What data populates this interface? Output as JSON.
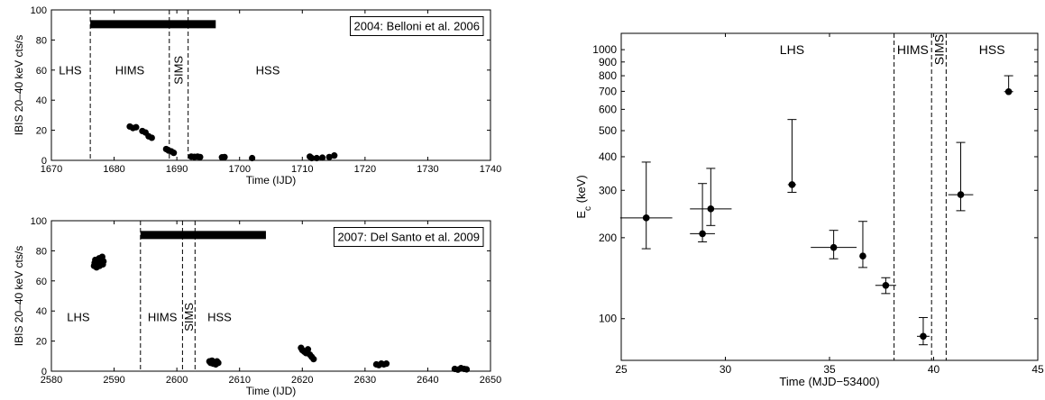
{
  "chart_data": [
    {
      "type": "scatter",
      "ylabel": "IBIS 20–40 keV cts/s",
      "xlabel": "Time (IJD)",
      "xlim": [
        1670,
        1740
      ],
      "ylim": [
        0,
        100
      ],
      "xticks": [
        1670,
        1680,
        1690,
        1700,
        1710,
        1720,
        1730,
        1740
      ],
      "yticks": [
        0,
        20,
        40,
        60,
        80,
        100
      ],
      "legend_box": "2004: Belloni et al. 2006",
      "bar": {
        "x_start": 1676.2,
        "x_end": 1696.2,
        "y": 90.5
      },
      "vlines": [
        1676.2,
        1688.8,
        1691.8
      ],
      "state_labels": [
        {
          "text": "LHS",
          "x": 1673.0,
          "y": 60,
          "rotated": false
        },
        {
          "text": "HIMS",
          "x": 1682.5,
          "y": 60,
          "rotated": false
        },
        {
          "text": "SIMS",
          "x": 1690.3,
          "y": 60,
          "rotated": true
        },
        {
          "text": "HSS",
          "x": 1704.5,
          "y": 60,
          "rotated": false
        }
      ],
      "points": [
        [
          1682.5,
          22.5
        ],
        [
          1683.0,
          21.5
        ],
        [
          1683.5,
          22.0
        ],
        [
          1684.5,
          19.5
        ],
        [
          1685.0,
          18.5
        ],
        [
          1685.5,
          16.0
        ],
        [
          1686.0,
          15.0
        ],
        [
          1688.3,
          7.5
        ],
        [
          1688.7,
          6.5
        ],
        [
          1689.1,
          6.0
        ],
        [
          1689.5,
          5.0
        ],
        [
          1692.3,
          2.5
        ],
        [
          1692.8,
          2.3
        ],
        [
          1693.3,
          2.5
        ],
        [
          1693.7,
          2.2
        ],
        [
          1697.2,
          2.0
        ],
        [
          1697.6,
          2.2
        ],
        [
          1702.0,
          1.5
        ],
        [
          1711.2,
          2.5
        ],
        [
          1711.5,
          1.5
        ],
        [
          1712.3,
          1.5
        ],
        [
          1713.2,
          1.8
        ],
        [
          1714.3,
          2.2
        ],
        [
          1715.1,
          3.2
        ]
      ]
    },
    {
      "type": "scatter",
      "ylabel": "IBIS 20–40 keV cts/s",
      "xlabel": "Time (IJD)",
      "xlim": [
        2580,
        2650
      ],
      "ylim": [
        0,
        100
      ],
      "xticks": [
        2580,
        2590,
        2600,
        2610,
        2620,
        2630,
        2640,
        2650
      ],
      "yticks": [
        0,
        20,
        40,
        60,
        80,
        100
      ],
      "legend_box": "2007: Del Santo et al. 2009",
      "bar": {
        "x_start": 2594.2,
        "x_end": 2614.2,
        "y": 90.5
      },
      "vlines": [
        2594.2,
        2600.9,
        2602.9
      ],
      "state_labels": [
        {
          "text": "LHS",
          "x": 2584.3,
          "y": 36,
          "rotated": false
        },
        {
          "text": "HIMS",
          "x": 2597.7,
          "y": 36,
          "rotated": false
        },
        {
          "text": "SIMS",
          "x": 2601.9,
          "y": 36,
          "rotated": true
        },
        {
          "text": "HSS",
          "x": 2606.8,
          "y": 36,
          "rotated": false
        }
      ],
      "points": [
        [
          2586.8,
          70
        ],
        [
          2586.9,
          72
        ],
        [
          2587.0,
          74
        ],
        [
          2587.2,
          69
        ],
        [
          2587.3,
          71
        ],
        [
          2587.4,
          73
        ],
        [
          2587.6,
          75
        ],
        [
          2587.7,
          70
        ],
        [
          2587.8,
          72
        ],
        [
          2588.0,
          74
        ],
        [
          2588.1,
          76
        ],
        [
          2588.2,
          71
        ],
        [
          2588.3,
          73
        ],
        [
          2605.2,
          6.5
        ],
        [
          2605.4,
          5.5
        ],
        [
          2605.6,
          7.0
        ],
        [
          2605.8,
          5.0
        ],
        [
          2606.0,
          6.0
        ],
        [
          2606.2,
          4.5
        ],
        [
          2606.4,
          6.5
        ],
        [
          2606.6,
          5.5
        ],
        [
          2619.8,
          15.5
        ],
        [
          2620.0,
          14.0
        ],
        [
          2620.3,
          13.0
        ],
        [
          2620.6,
          12.0
        ],
        [
          2620.9,
          14.5
        ],
        [
          2621.2,
          11.0
        ],
        [
          2621.5,
          9.5
        ],
        [
          2621.8,
          8.0
        ],
        [
          2631.8,
          4.5
        ],
        [
          2632.2,
          4.0
        ],
        [
          2632.6,
          5.0
        ],
        [
          2633.0,
          4.5
        ],
        [
          2633.4,
          5.0
        ],
        [
          2644.3,
          1.5
        ],
        [
          2644.8,
          1.0
        ],
        [
          2645.3,
          2.0
        ],
        [
          2645.8,
          1.5
        ],
        [
          2646.2,
          1.2
        ]
      ]
    },
    {
      "type": "scatter",
      "ylabel": "E_c (keV)",
      "xlabel": "Time (MJD−53400)",
      "xlim": [
        25,
        45
      ],
      "ylim": [
        70,
        1150
      ],
      "log_y": true,
      "xticks": [
        25,
        30,
        35,
        40,
        45
      ],
      "yticks": [
        100,
        200,
        300,
        400,
        500,
        600,
        700,
        800,
        900,
        1000
      ],
      "vlines": [
        38.1,
        39.9,
        40.6
      ],
      "state_labels": [
        {
          "text": "LHS",
          "x": 33.2,
          "y": 1000,
          "rotated": false
        },
        {
          "text": "HIMS",
          "x": 39.0,
          "y": 1000,
          "rotated": false
        },
        {
          "text": "SIMS",
          "x": 40.25,
          "y": 1000,
          "rotated": true
        },
        {
          "text": "HSS",
          "x": 42.8,
          "y": 1000,
          "rotated": false
        }
      ],
      "points": [
        {
          "x": 26.2,
          "y": 237,
          "xerr": 1.25,
          "ylo": 182,
          "yhi": 382
        },
        {
          "x": 28.9,
          "y": 207,
          "xerr": 0.6,
          "ylo": 193,
          "yhi": 318
        },
        {
          "x": 29.3,
          "y": 256,
          "xerr": 1.0,
          "ylo": 222,
          "yhi": 362
        },
        {
          "x": 33.2,
          "y": 315,
          "xerr": 0.2,
          "ylo": 295,
          "yhi": 550
        },
        {
          "x": 35.2,
          "y": 184,
          "xerr": 1.1,
          "ylo": 167,
          "yhi": 213
        },
        {
          "x": 36.6,
          "y": 171,
          "xerr": 0.05,
          "ylo": 155,
          "yhi": 230
        },
        {
          "x": 37.7,
          "y": 133,
          "xerr": 0.5,
          "ylo": 124,
          "yhi": 142
        },
        {
          "x": 39.5,
          "y": 86,
          "xerr": 0.3,
          "ylo": 80,
          "yhi": 101
        },
        {
          "x": 41.3,
          "y": 289,
          "xerr": 0.6,
          "ylo": 252,
          "yhi": 452
        },
        {
          "x": 43.6,
          "y": 698,
          "xerr": 0.05,
          "ylo": 698,
          "yhi": 800
        }
      ]
    }
  ]
}
